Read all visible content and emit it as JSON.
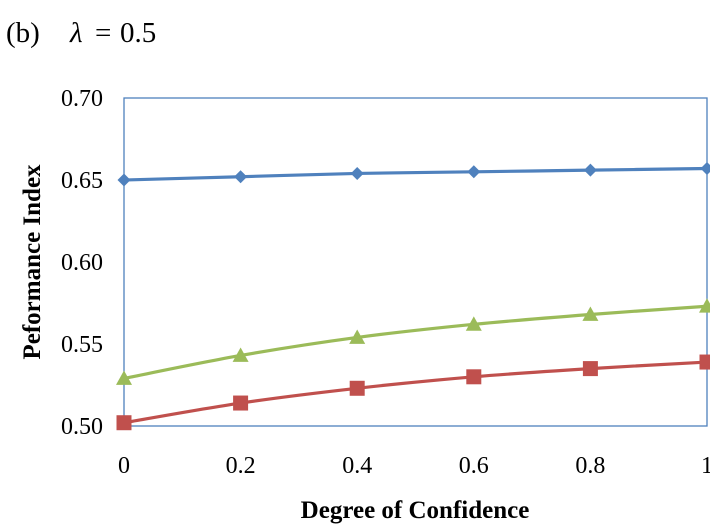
{
  "caption": {
    "prefix": "(b)",
    "symbol": "λ",
    "equals": "=",
    "value": "0.5"
  },
  "chart_data": {
    "type": "line",
    "title": "",
    "xlabel": "Degree of Confidence",
    "ylabel": "Peformance Index",
    "x": [
      0,
      0.2,
      0.4,
      0.6,
      0.8,
      1
    ],
    "x_tick_labels": [
      "0",
      "0.2",
      "0.4",
      "0.6",
      "0.8",
      "1"
    ],
    "y_tick_labels": [
      "0.50",
      "0.55",
      "0.60",
      "0.65",
      "0.70"
    ],
    "y_ticks": [
      0.5,
      0.55,
      0.6,
      0.65,
      0.7
    ],
    "xlim": [
      0,
      1
    ],
    "ylim": [
      0.5,
      0.7
    ],
    "grid": false,
    "legend": "none",
    "series": [
      {
        "color": "#4F81BD",
        "marker": "diamond",
        "values": [
          0.65,
          0.652,
          0.654,
          0.655,
          0.656,
          0.657
        ]
      },
      {
        "color": "#C0504D",
        "marker": "square",
        "values": [
          0.502,
          0.514,
          0.523,
          0.53,
          0.535,
          0.539
        ]
      },
      {
        "color": "#9BBB59",
        "marker": "triangle",
        "values": [
          0.529,
          0.543,
          0.554,
          0.562,
          0.568,
          0.573
        ]
      }
    ],
    "frame_color": "#4F81BD"
  }
}
